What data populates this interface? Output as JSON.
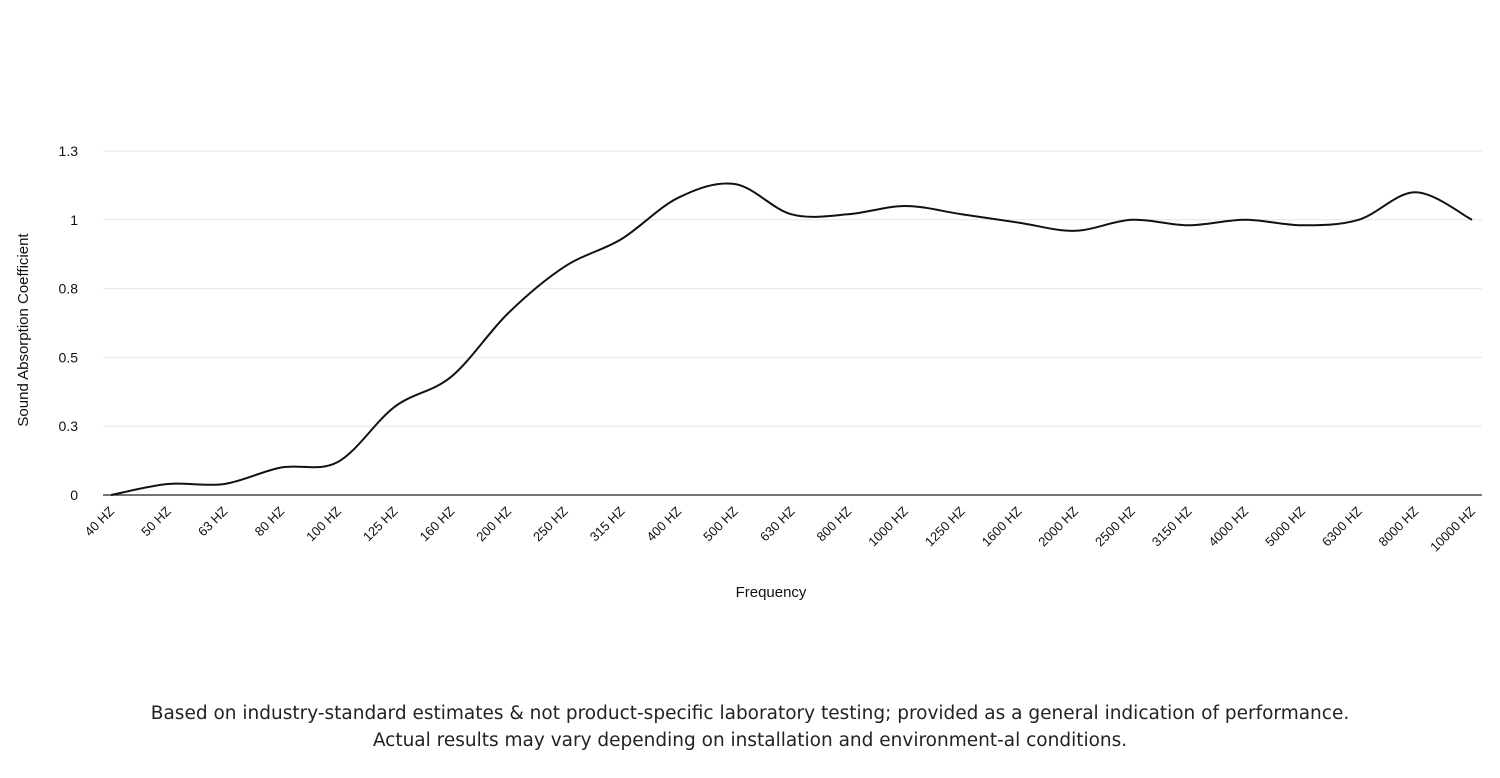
{
  "chart_data": {
    "type": "line",
    "xlabel": "Frequency",
    "ylabel": "Sound Absorption Coefficient",
    "ylim": [
      0,
      1.3
    ],
    "yticks": [
      "0",
      "0.3",
      "0.5",
      "0.8",
      "1",
      "1.3"
    ],
    "ytick_values": [
      0,
      0.25,
      0.5,
      0.75,
      1.0,
      1.25
    ],
    "grid": true,
    "categories": [
      "40 HZ",
      "50 HZ",
      "63 HZ",
      "80 HZ",
      "100 HZ",
      "125 HZ",
      "160 HZ",
      "200 HZ",
      "250 HZ",
      "315 HZ",
      "400 HZ",
      "500 HZ",
      "630 HZ",
      "800 HZ",
      "1000 HZ",
      "1250 HZ",
      "1600 HZ",
      "2000 HZ",
      "2500 HZ",
      "3150 HZ",
      "4000 HZ",
      "5000 HZ",
      "6300 HZ",
      "8000 HZ",
      "10000 HZ"
    ],
    "series": [
      {
        "values": [
          0.0,
          0.04,
          0.04,
          0.1,
          0.12,
          0.32,
          0.43,
          0.66,
          0.83,
          0.93,
          1.08,
          1.13,
          1.02,
          1.02,
          1.05,
          1.02,
          0.99,
          0.96,
          1.0,
          0.98,
          1.0,
          0.98,
          1.0,
          1.1,
          1.0
        ],
        "color": "#111111"
      }
    ]
  },
  "footer": {
    "line1": "Based on industry-standard estimates & not product-specific laboratory testing; provided as a general indication of performance.",
    "line2": "Actual results may vary depending on installation and environment-al conditions."
  }
}
